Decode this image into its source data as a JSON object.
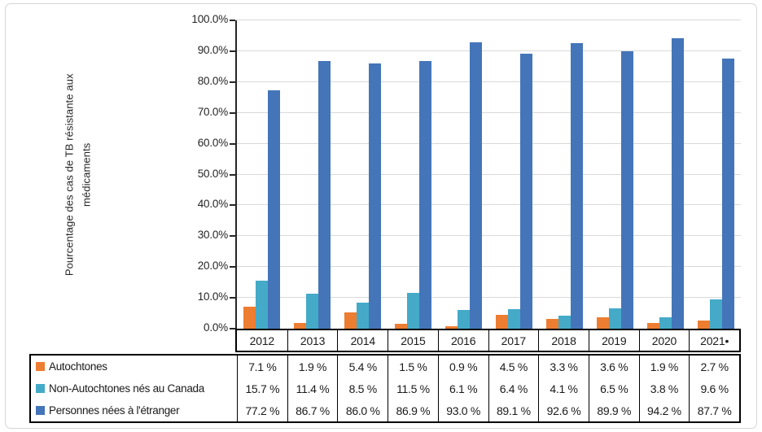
{
  "chart_data": {
    "type": "bar",
    "title": "",
    "ylabel_lines": [
      "Pourcentage des cas de TB résistante aux",
      "médicaments"
    ],
    "categories": [
      "2012",
      "2013",
      "2014",
      "2015",
      "2016",
      "2017",
      "2018",
      "2019",
      "2020",
      "2021•"
    ],
    "series": [
      {
        "name": "Autochtones",
        "color": "#ED7D31",
        "values": [
          7.1,
          1.9,
          5.4,
          1.5,
          0.9,
          4.5,
          3.3,
          3.6,
          1.9,
          2.7
        ]
      },
      {
        "name": "Non-Autochtones nés au Canada",
        "color": "#44AAC8",
        "values": [
          15.7,
          11.4,
          8.5,
          11.5,
          6.1,
          6.4,
          4.1,
          6.5,
          3.8,
          9.6
        ]
      },
      {
        "name": "Personnes nées à l'étranger",
        "color": "#4475B9",
        "values": [
          77.2,
          86.7,
          86.0,
          86.9,
          93.0,
          89.1,
          92.6,
          89.9,
          94.2,
          87.7
        ]
      }
    ],
    "y_axis": {
      "min": 0,
      "max": 100,
      "step": 10,
      "tick_suffix": "%",
      "tick_decimals": 1
    },
    "value_suffix": " %",
    "value_decimals": 1,
    "grid": true,
    "legend_position": "table-left",
    "colors": {
      "gridline": "#D9D9D9",
      "axis": "#262626",
      "table_border": "#000000"
    }
  }
}
